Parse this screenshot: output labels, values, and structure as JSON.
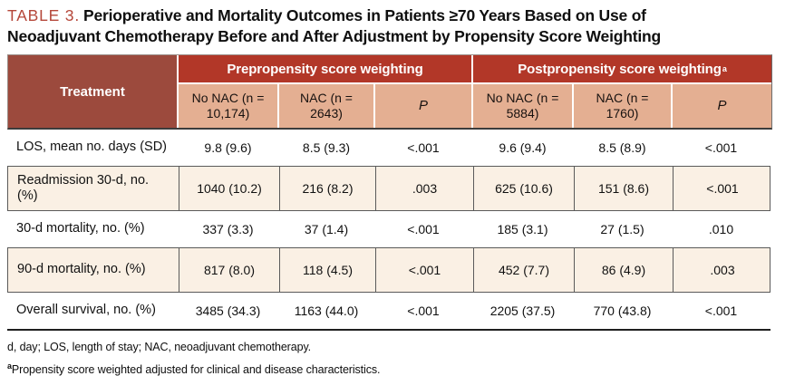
{
  "title": {
    "label": "TABLE 3.",
    "line1": "Perioperative and Mortality Outcomes in Patients ≥70 Years Based on Use of",
    "line2": "Neoadjuvant Chemotherapy Before and After Adjustment by Propensity Score Weighting"
  },
  "table": {
    "corner_header": "Treatment",
    "group_headers": [
      {
        "label": "Prepropensity score weighting",
        "sup": ""
      },
      {
        "label": "Postpropensity score weighting",
        "sup": "a"
      }
    ],
    "column_headers": [
      "No NAC (n = 10,174)",
      "NAC (n = 2643)",
      "P",
      "No NAC (n = 5884)",
      "NAC (n = 1760)",
      "P"
    ],
    "rows": [
      {
        "label": "LOS, mean no. days (SD)",
        "values": [
          "9.8 (9.6)",
          "8.5 (9.3)",
          "<.001",
          "9.6 (9.4)",
          "8.5 (8.9)",
          "<.001"
        ]
      },
      {
        "label": "Readmission 30-d, no. (%)",
        "values": [
          "1040 (10.2)",
          "216 (8.2)",
          ".003",
          "625 (10.6)",
          "151 (8.6)",
          "<.001"
        ]
      },
      {
        "label": "30-d mortality, no. (%)",
        "values": [
          "337 (3.3)",
          "37 (1.4)",
          "<.001",
          "185 (3.1)",
          "27 (1.5)",
          ".010"
        ]
      },
      {
        "label": "90-d mortality, no. (%)",
        "values": [
          "817 (8.0)",
          "118 (4.5)",
          "<.001",
          "452 (7.7)",
          "86 (4.9)",
          ".003"
        ]
      },
      {
        "label": "Overall survival, no. (%)",
        "values": [
          "3485 (34.3)",
          "1163 (44.0)",
          "<.001",
          "2205 (37.5)",
          "770 (43.8)",
          "<.001"
        ]
      }
    ]
  },
  "footnotes": {
    "abbreviations": "d, day; LOS, length of stay; NAC, neoadjuvant chemotherapy.",
    "note_sup": "a",
    "note_text": "Propensity score weighted adjusted for clinical and disease characteristics."
  },
  "colors": {
    "header_dark_red": "#9c4a3d",
    "header_bright_red": "#b23728",
    "subheader_peach": "#e4af92",
    "row_cream": "#faf0e4",
    "title_accent_red": "#b5473a"
  }
}
